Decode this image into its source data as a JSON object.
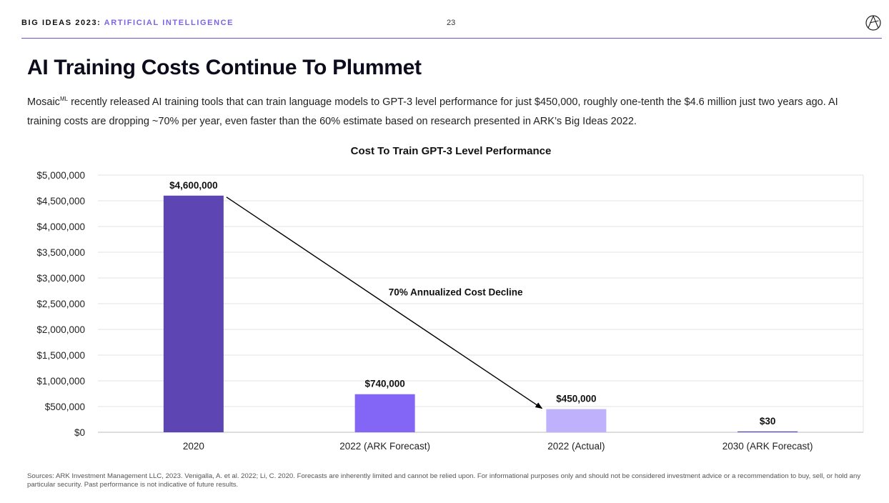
{
  "header": {
    "brand_main": "BIG IDEAS 2023:",
    "brand_sub": "ARTIFICIAL INTELLIGENCE",
    "page_number": "23",
    "logo_icon": "ark-logo-icon"
  },
  "slide": {
    "title": "AI Training Costs Continue To Plummet",
    "desc_part1": "Mosaic",
    "desc_sup": "ML",
    "desc_part2": " recently released AI training tools that can train language models to GPT-3 level performance for just $450,000, roughly one-tenth the $4.6 million just two years ago. AI training costs are dropping ~70% per year, even faster than the 60% estimate based on research presented in ARK’s Big Ideas 2022."
  },
  "chart_data": {
    "type": "bar",
    "title": "Cost To Train GPT-3 Level Performance",
    "categories": [
      "2020",
      "2022 (ARK Forecast)",
      "2022 (Actual)",
      "2030 (ARK Forecast)"
    ],
    "values": [
      4600000,
      740000,
      450000,
      30
    ],
    "data_labels": [
      "$4,600,000",
      "$740,000",
      "$450,000",
      "$30"
    ],
    "bar_colors": [
      "#5e45b4",
      "#8466f7",
      "#bfb1fb",
      "#5e45b4"
    ],
    "ylim": [
      0,
      5000000
    ],
    "yticks": [
      0,
      500000,
      1000000,
      1500000,
      2000000,
      2500000,
      3000000,
      3500000,
      4000000,
      4500000,
      5000000
    ],
    "ytick_labels": [
      "$0",
      "$500,000",
      "$1,000,000",
      "$1,500,000",
      "$2,000,000",
      "$2,500,000",
      "$3,000,000",
      "$3,500,000",
      "$4,000,000",
      "$4,500,000",
      "$5,000,000"
    ],
    "grid": true,
    "annotation": "70% Annualized Cost Decline",
    "xlabel": "",
    "ylabel": ""
  },
  "footer": {
    "sources": "Sources: ARK Investment Management LLC, 2023. Venigalla, A. et al. 2022; Li, C. 2020. Forecasts are inherently limited and cannot be relied upon. For informational purposes only and should not be considered investment advice or a recommendation to buy, sell, or hold any particular security. Past performance is not indicative of future results."
  }
}
